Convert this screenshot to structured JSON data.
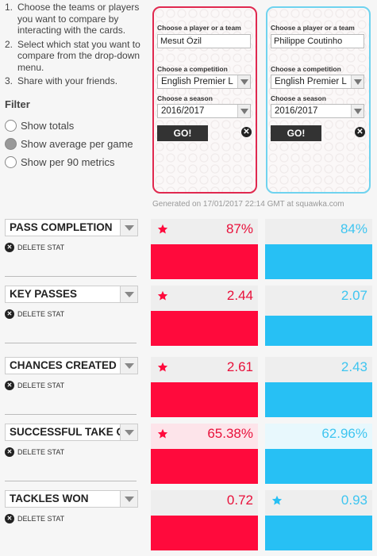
{
  "instructions": [
    {
      "num": "1.",
      "text": "Choose the teams or players you want to compare by interacting with the cards."
    },
    {
      "num": "2.",
      "text": "Select which stat you want to compare from the drop-down menu."
    },
    {
      "num": "3.",
      "text": "Share with your friends."
    }
  ],
  "filter": {
    "title": "Filter",
    "options": [
      {
        "label": "Show totals",
        "checked": false
      },
      {
        "label": "Show average per game",
        "checked": true
      },
      {
        "label": "Show per 90 metrics",
        "checked": false
      }
    ]
  },
  "cards": [
    {
      "accent": "#e0294f",
      "player_label": "Choose a player or a team",
      "player": "Mesut Özil",
      "competition_label": "Choose a competition",
      "competition": "English Premier L",
      "season_label": "Choose a season",
      "season": "2016/2017",
      "go": "GO!"
    },
    {
      "accent": "#6fd3ef",
      "player_label": "Choose a player or a team",
      "player": "Philippe Coutinho",
      "competition_label": "Choose a competition",
      "competition": "English Premier L",
      "season_label": "Choose a season",
      "season": "2016/2017",
      "go": "GO!"
    }
  ],
  "generated": "Generated on 17/01/2017 22:14 GMT at squawka.com",
  "delete_label": "DELETE STAT",
  "stats": [
    {
      "name": "PASS COMPLETION",
      "left": "87%",
      "right": "84%",
      "left_fill": 0.58,
      "right_fill": 0.58,
      "winner": "left"
    },
    {
      "name": "KEY PASSES",
      "left": "2.44",
      "right": "2.07",
      "left_fill": 0.58,
      "right_fill": 0.5,
      "winner": "left"
    },
    {
      "name": "CHANCES CREATED",
      "left": "2.61",
      "right": "2.43",
      "left_fill": 0.58,
      "right_fill": 0.58,
      "winner": "left"
    },
    {
      "name": "SUCCESSFUL TAKE ON",
      "left": "65.38%",
      "right": "62.96%",
      "left_fill": 0.58,
      "right_fill": 0.58,
      "winner": "left"
    },
    {
      "name": "TACKLES WON",
      "left": "0.72",
      "right": "0.93",
      "left_fill": 0.58,
      "right_fill": 0.58,
      "winner": "right"
    }
  ],
  "colors": {
    "red": "#ff0a3c",
    "blue": "#27c0f4"
  }
}
